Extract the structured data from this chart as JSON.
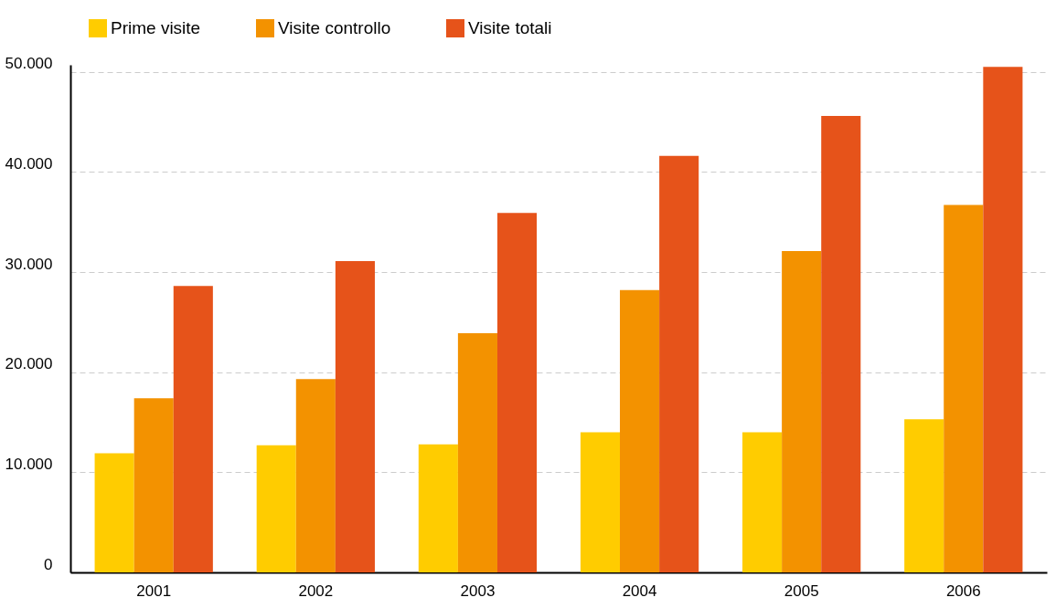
{
  "chart_data": {
    "type": "bar",
    "categories": [
      "2001",
      "2002",
      "2003",
      "2004",
      "2005",
      "2006"
    ],
    "series": [
      {
        "name": "Prime visite",
        "color": "#ffcc00",
        "values": [
          11900,
          12700,
          12800,
          14000,
          14000,
          15300
        ]
      },
      {
        "name": "Visite controllo",
        "color": "#f39200",
        "values": [
          17400,
          19300,
          23900,
          28200,
          32100,
          36700
        ]
      },
      {
        "name": "Visite totali",
        "color": "#e6531a",
        "values": [
          28600,
          31100,
          35900,
          41600,
          45600,
          50500
        ]
      }
    ],
    "ylim": [
      0,
      50700
    ],
    "yticks": [
      0,
      {
        "value": 10000,
        "label": "10.000"
      },
      {
        "value": 20000,
        "label": "20.000"
      },
      {
        "value": 30000,
        "label": "30.000"
      },
      {
        "value": 40000,
        "label": "40.000"
      },
      {
        "value": 50000,
        "label": "50.000"
      }
    ],
    "grid": "y",
    "legend": "top left"
  }
}
